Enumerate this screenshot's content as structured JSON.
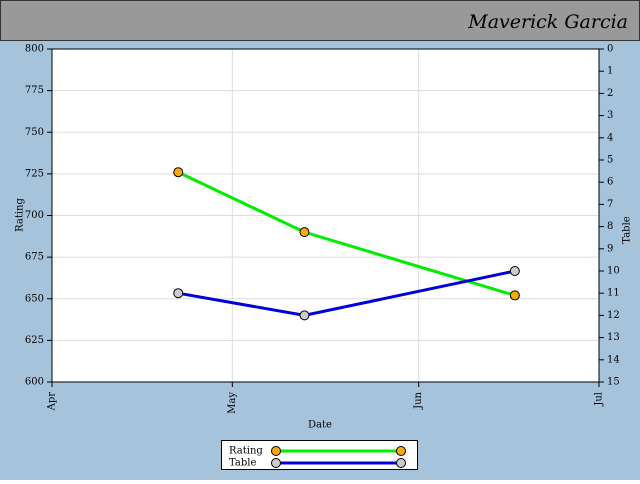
{
  "header": {
    "title": "Maverick Garcia"
  },
  "chart_data": {
    "type": "line",
    "x_label": "Date",
    "y_label": "Rating",
    "y2_label": "Table",
    "x": [
      21,
      42,
      77
    ],
    "xlim": [
      0,
      91
    ],
    "xticks": [
      {
        "value": 0,
        "label": "Apr"
      },
      {
        "value": 30,
        "label": "May"
      },
      {
        "value": 61,
        "label": "Jun"
      },
      {
        "value": 91,
        "label": "Jul"
      }
    ],
    "ylim": [
      600,
      800
    ],
    "yticks": [
      600,
      625,
      650,
      675,
      700,
      725,
      750,
      775,
      800
    ],
    "y2lim": [
      0,
      15
    ],
    "y2_inverted": true,
    "y2ticks": [
      0,
      1,
      2,
      3,
      4,
      5,
      6,
      7,
      8,
      9,
      10,
      11,
      12,
      13,
      14,
      15
    ],
    "grid": true,
    "legend": "bottom",
    "series": [
      {
        "name": "Rating",
        "color": "#00ee00",
        "marker_color": "#ffaa00",
        "values": [
          726,
          690,
          652
        ]
      },
      {
        "name": "Table",
        "color": "#0000dd",
        "marker_color": "#cccccc",
        "axis": "y2",
        "values": [
          11,
          12,
          10
        ]
      }
    ]
  }
}
